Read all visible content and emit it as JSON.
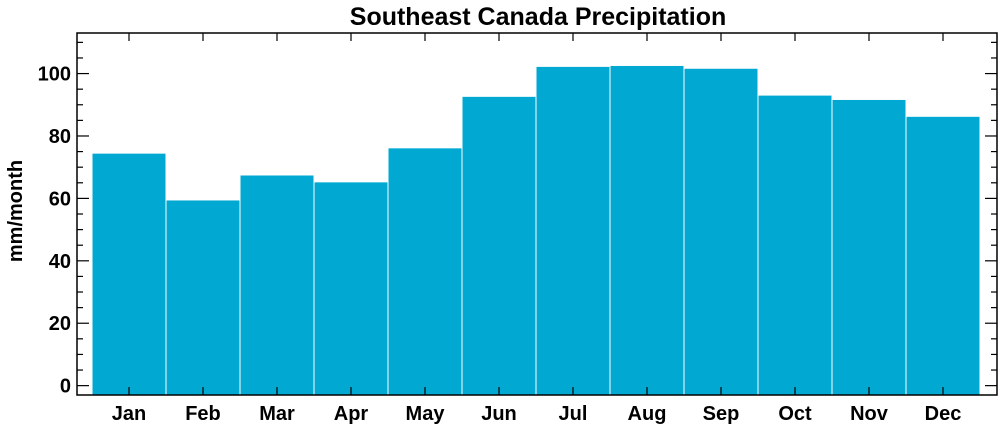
{
  "chart_data": {
    "type": "bar",
    "title": "Southeast Canada Precipitation",
    "xlabel": "",
    "ylabel": "mm/month",
    "categories": [
      "Jan",
      "Feb",
      "Mar",
      "Apr",
      "May",
      "Jun",
      "Jul",
      "Aug",
      "Sep",
      "Oct",
      "Nov",
      "Dec"
    ],
    "values": [
      74.5,
      59.5,
      67.5,
      65.3,
      76.2,
      92.7,
      102.3,
      102.6,
      101.7,
      93.1,
      91.7,
      86.3
    ],
    "ylim": [
      -3,
      113
    ],
    "yticks": [
      0,
      20,
      40,
      60,
      80,
      100
    ],
    "yticks_labels": [
      "0",
      "20",
      "40",
      "60",
      "80",
      "100"
    ],
    "y_minor_step": 5,
    "grid": false,
    "legend": "none",
    "colors": {
      "bar": "#00a8d2",
      "bar_edge": "#ffffff",
      "axis": "#000000"
    }
  }
}
